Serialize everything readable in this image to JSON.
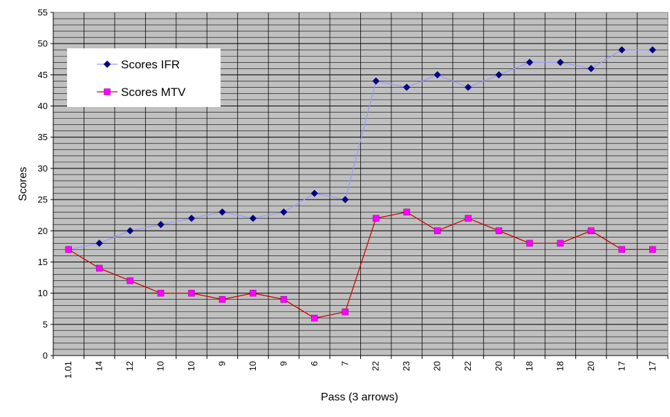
{
  "chart_data": {
    "type": "line",
    "xlabel": "Pass (3 arrows)",
    "ylabel": "Scores",
    "ylim": [
      0,
      55
    ],
    "y_major_step": 5,
    "y_minor_step": 1,
    "categories": [
      "1.01",
      "14",
      "12",
      "10",
      "10",
      "9",
      "10",
      "9",
      "6",
      "7",
      "22",
      "23",
      "20",
      "22",
      "20",
      "18",
      "18",
      "20",
      "17",
      "17"
    ],
    "series": [
      {
        "name": "Scores IFR",
        "values": [
          17,
          18,
          20,
          21,
          22,
          23,
          22,
          23,
          26,
          25,
          44,
          43,
          45,
          43,
          45,
          47,
          47,
          46,
          49,
          49
        ],
        "line_color": "#9999ff",
        "marker_color": "#000080",
        "marker": "diamond"
      },
      {
        "name": "Scores MTV",
        "values": [
          17,
          14,
          12,
          10,
          10,
          9,
          10,
          9,
          6,
          7,
          22,
          23,
          20,
          22,
          20,
          18,
          18,
          20,
          17,
          17
        ],
        "line_color": "#cc0000",
        "marker_color": "#ff00ff",
        "marker": "square"
      }
    ],
    "grid": true,
    "plot_background": "#c0c0c0",
    "legend_position": "top-left"
  }
}
